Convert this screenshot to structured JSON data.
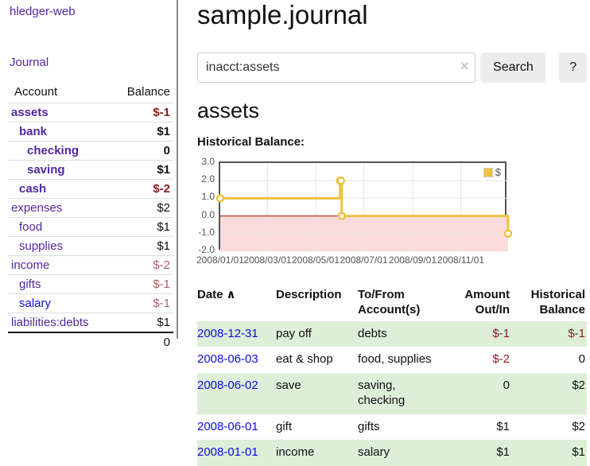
{
  "app": {
    "title": "hledger-web"
  },
  "sidebar": {
    "journal_link": "Journal",
    "accounts_table": {
      "headers": {
        "account": "Account",
        "balance": "Balance"
      },
      "rows": [
        {
          "name": "assets",
          "depth": 0,
          "bold": true,
          "balance": "$-1",
          "neg": "strong"
        },
        {
          "name": "bank",
          "depth": 1,
          "bold": true,
          "balance": "$1",
          "neg": "none"
        },
        {
          "name": "checking",
          "depth": 2,
          "bold": true,
          "balance": "0",
          "neg": "none"
        },
        {
          "name": "saving",
          "depth": 2,
          "bold": true,
          "balance": "$1",
          "neg": "none"
        },
        {
          "name": "cash",
          "depth": 1,
          "bold": true,
          "balance": "$-2",
          "neg": "strong"
        },
        {
          "name": "expenses",
          "depth": 0,
          "bold": false,
          "balance": "$2",
          "neg": "none"
        },
        {
          "name": "food",
          "depth": 1,
          "bold": false,
          "balance": "$1",
          "neg": "none"
        },
        {
          "name": "supplies",
          "depth": 1,
          "bold": false,
          "balance": "$1",
          "neg": "none"
        },
        {
          "name": "income",
          "depth": 0,
          "bold": false,
          "balance": "$-2",
          "neg": "soft"
        },
        {
          "name": "gifts",
          "depth": 1,
          "bold": false,
          "balance": "$-1",
          "neg": "soft"
        },
        {
          "name": "salary",
          "depth": 1,
          "bold": false,
          "balance": "$-1",
          "neg": "soft",
          "blue": true
        },
        {
          "name": "liabilities:debts",
          "depth": 0,
          "bold": false,
          "balance": "$1",
          "neg": "none"
        }
      ],
      "total": "0"
    }
  },
  "header": {
    "title": "sample.journal"
  },
  "search": {
    "value": "inacct:assets",
    "clear_icon": "×",
    "button_label": "Search",
    "help_label": "?"
  },
  "account_page": {
    "heading": "assets",
    "chart_title": "Historical Balance:"
  },
  "chart_data": {
    "type": "line",
    "step": true,
    "title": "Historical Balance:",
    "legend": "$",
    "legend_position": "top-right",
    "x_range": [
      "2008-01-01",
      "2008-12-31"
    ],
    "ylim": [
      -2,
      3
    ],
    "series": [
      {
        "name": "$",
        "points": [
          [
            "2008-01-01",
            1
          ],
          [
            "2008-06-01",
            2
          ],
          [
            "2008-06-02",
            2
          ],
          [
            "2008-06-03",
            0
          ],
          [
            "2008-12-31",
            -1
          ]
        ]
      }
    ],
    "y_ticks": [
      3.0,
      2.0,
      1.0,
      0.0,
      -1.0,
      -2.0
    ],
    "x_ticks": [
      {
        "date": "2008-01-01",
        "label": "2008/01/01"
      },
      {
        "date": "2008-03-01",
        "label": "2008/03/01"
      },
      {
        "date": "2008-05-01",
        "label": "2008/05/01"
      },
      {
        "date": "2008-07-01",
        "label": "2008/07/01"
      },
      {
        "date": "2008-09-01",
        "label": "2008/09/01"
      },
      {
        "date": "2008-11-01",
        "label": "2008/11/01"
      }
    ],
    "grid": true,
    "colors": {
      "line": "#edc240",
      "marker_fill": "#ffffff",
      "zero_line": "#a40000",
      "negative_region": "#fadbdb",
      "gridline": "#e6e6e6",
      "plot_border": "#545454"
    }
  },
  "register": {
    "headers": [
      {
        "key": "date",
        "lines": [
          "Date"
        ],
        "sort_icon": "∧"
      },
      {
        "key": "description",
        "lines": [
          "Description"
        ]
      },
      {
        "key": "accounts",
        "lines": [
          "To/From",
          "Account(s)"
        ]
      },
      {
        "key": "amount",
        "lines": [
          "Amount",
          "Out/In"
        ],
        "num": true
      },
      {
        "key": "balance",
        "lines": [
          "Historical",
          "Balance"
        ],
        "num": true
      }
    ],
    "rows": [
      {
        "date": "2008-12-31",
        "description": "pay off",
        "accounts": "debts",
        "amount": "$-1",
        "amount_neg": true,
        "balance": "$-1",
        "balance_neg": true,
        "stripe": true
      },
      {
        "date": "2008-06-03",
        "description": "eat & shop",
        "accounts": "food, supplies",
        "amount": "$-2",
        "amount_neg": true,
        "balance": "0",
        "balance_neg": false,
        "stripe": false
      },
      {
        "date": "2008-06-02",
        "description": "save",
        "accounts": "saving, checking",
        "amount": "0",
        "amount_neg": false,
        "balance": "$2",
        "balance_neg": false,
        "stripe": true
      },
      {
        "date": "2008-06-01",
        "description": "gift",
        "accounts": "gifts",
        "amount": "$1",
        "amount_neg": false,
        "balance": "$2",
        "balance_neg": false,
        "stripe": false
      },
      {
        "date": "2008-01-01",
        "description": "income",
        "accounts": "salary",
        "amount": "$1",
        "amount_neg": false,
        "balance": "$1",
        "balance_neg": false,
        "stripe": true
      }
    ]
  },
  "colors": {
    "link_purple": "#5128a0",
    "link_blue": "#0d0de0",
    "negative_strong": "#8e1b21",
    "negative_soft": "#b15f66",
    "row_stripe_green": "#ddeed9",
    "button_bg": "#ececec"
  }
}
